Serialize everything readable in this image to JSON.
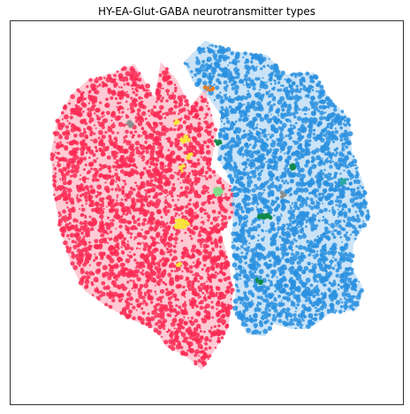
{
  "chart_data": {
    "type": "scatter",
    "title": "HY-EA-Glut-GABA neurotransmitter types",
    "xlabel": "",
    "ylabel": "",
    "axes_visible": false,
    "legend": "none",
    "colors": {
      "background": "#ffffff",
      "frame": "#000000",
      "glut": "#fa2a54",
      "gaba": "#2a90df",
      "minor_yellow": "#f8e43a",
      "minor_dark_green": "#108a4c",
      "minor_light_green": "#7fe08a",
      "minor_orange": "#f27b1c",
      "minor_grey": "#8e8e8e",
      "minor_teal": "#2aa8a0"
    },
    "clusters": [
      {
        "key": "glut",
        "color": "#fa2a54"
      },
      {
        "key": "gaba",
        "color": "#2a90df"
      },
      {
        "key": "minor_yellow",
        "color": "#f8e43a"
      },
      {
        "key": "minor_dark_green",
        "color": "#108a4c"
      },
      {
        "key": "minor_light_green",
        "color": "#7fe08a"
      },
      {
        "key": "minor_orange",
        "color": "#f27b1c"
      },
      {
        "key": "minor_grey",
        "color": "#8e8e8e"
      },
      {
        "key": "minor_teal",
        "color": "#2aa8a0"
      }
    ]
  }
}
